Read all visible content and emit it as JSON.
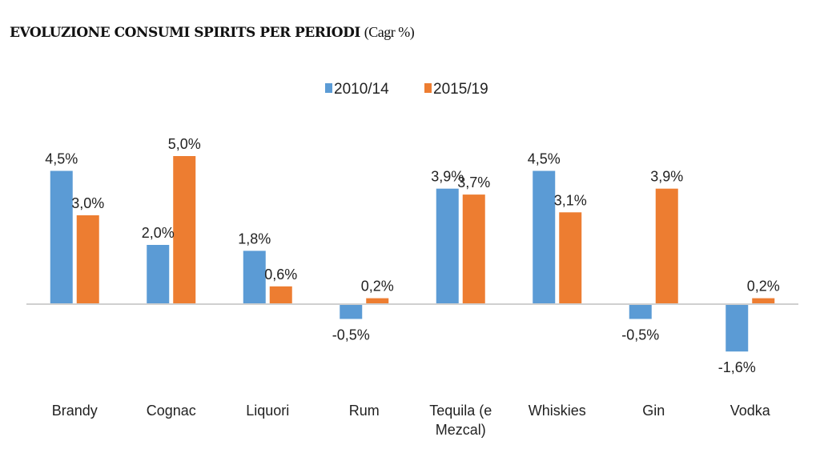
{
  "chart_data": {
    "type": "bar",
    "title": "EVOLUZIONE CONSUMI SPIRITS PER PERIODI",
    "subtitle": "(Cagr %)",
    "categories": [
      "Brandy",
      "Cognac",
      "Liquori",
      "Rum",
      "Tequila (e Mezcal)",
      "Whiskies",
      "Gin",
      "Vodka"
    ],
    "series": [
      {
        "name": "2010/14",
        "color": "#5B9BD5",
        "values": [
          4.5,
          2.0,
          1.8,
          -0.5,
          3.9,
          4.5,
          -0.5,
          -1.6
        ],
        "labels": [
          "4,5%",
          "2,0%",
          "1,8%",
          "-0,5%",
          "3,9%",
          "4,5%",
          "-0,5%",
          "-1,6%"
        ]
      },
      {
        "name": "2015/19",
        "color": "#ED7D31",
        "values": [
          3.0,
          5.0,
          0.6,
          0.2,
          3.7,
          3.1,
          3.9,
          0.2
        ],
        "labels": [
          "3,0%",
          "5,0%",
          "0,6%",
          "0,2%",
          "3,7%",
          "3,1%",
          "3,9%",
          "0,2%"
        ]
      }
    ],
    "xlabel": "",
    "ylabel": "",
    "grid": false,
    "legend": "top-center"
  }
}
